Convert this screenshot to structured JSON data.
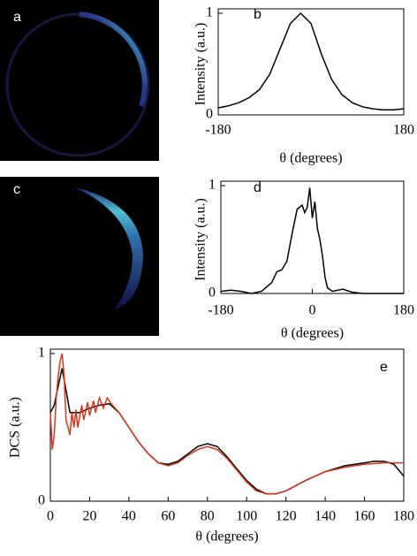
{
  "chart_data": [
    {
      "type": "image",
      "label": "a"
    },
    {
      "type": "line",
      "label": "b",
      "x_label": "θ (degrees)",
      "y_label": "Intensity (a.u.)",
      "xlim": [
        -180,
        180
      ],
      "xticks": [
        -180,
        180
      ],
      "ylim": [
        0,
        1
      ],
      "yticks": [
        0,
        1
      ],
      "series": [
        {
          "color": "#000000",
          "x": [
            -180,
            -160,
            -140,
            -120,
            -100,
            -80,
            -60,
            -40,
            -20,
            0,
            20,
            40,
            60,
            80,
            100,
            120,
            140,
            160,
            180
          ],
          "values": [
            0.07,
            0.09,
            0.12,
            0.17,
            0.25,
            0.4,
            0.65,
            0.9,
            1.0,
            0.9,
            0.6,
            0.35,
            0.2,
            0.12,
            0.08,
            0.06,
            0.05,
            0.05,
            0.06
          ]
        }
      ]
    },
    {
      "type": "image",
      "label": "c"
    },
    {
      "type": "line",
      "label": "d",
      "x_label": "θ (degrees)",
      "y_label": "Intensity (a.u.)",
      "xlim": [
        -180,
        180
      ],
      "xticks": [
        -180,
        0,
        180
      ],
      "ylim": [
        0,
        1
      ],
      "yticks": [
        0,
        1
      ],
      "series": [
        {
          "color": "#000000",
          "x": [
            -180,
            -160,
            -140,
            -120,
            -100,
            -80,
            -70,
            -60,
            -50,
            -40,
            -30,
            -20,
            -15,
            -10,
            -5,
            0,
            5,
            10,
            15,
            20,
            25,
            30,
            40,
            60,
            80,
            100,
            140,
            180
          ],
          "values": [
            0.02,
            0.03,
            0.02,
            0.0,
            0.02,
            0.1,
            0.2,
            0.22,
            0.3,
            0.55,
            0.78,
            0.82,
            0.75,
            0.8,
            0.98,
            0.7,
            0.85,
            0.6,
            0.5,
            0.35,
            0.15,
            0.05,
            0.02,
            0.04,
            0.01,
            0.0,
            0.0,
            0.0
          ]
        }
      ]
    },
    {
      "type": "line",
      "label": "e",
      "x_label": "θ (degrees)",
      "y_label": "DCS (a.u.)",
      "xlim": [
        0,
        180
      ],
      "xticks": [
        0,
        20,
        40,
        60,
        80,
        100,
        120,
        140,
        160,
        180
      ],
      "ylim": [
        0,
        1
      ],
      "yticks": [
        0,
        1
      ],
      "series": [
        {
          "color": "#000000",
          "x": [
            0,
            2,
            4,
            6,
            8,
            10,
            15,
            20,
            25,
            30,
            35,
            40,
            45,
            50,
            55,
            60,
            65,
            70,
            75,
            80,
            85,
            90,
            95,
            100,
            105,
            110,
            115,
            120,
            130,
            140,
            150,
            160,
            165,
            170,
            175,
            180
          ],
          "values": [
            0.6,
            0.65,
            0.78,
            0.9,
            0.75,
            0.6,
            0.6,
            0.63,
            0.65,
            0.66,
            0.6,
            0.5,
            0.4,
            0.32,
            0.26,
            0.25,
            0.27,
            0.32,
            0.37,
            0.39,
            0.37,
            0.3,
            0.22,
            0.14,
            0.08,
            0.05,
            0.05,
            0.07,
            0.14,
            0.2,
            0.24,
            0.26,
            0.27,
            0.27,
            0.25,
            0.17
          ]
        },
        {
          "color": "#d9341c",
          "x": [
            0,
            1,
            2,
            3,
            4,
            5,
            6,
            7,
            8,
            10,
            11,
            12,
            13,
            14,
            16,
            17,
            19,
            20,
            22,
            23,
            25,
            27,
            29,
            31,
            35,
            40,
            45,
            50,
            55,
            60,
            65,
            70,
            75,
            80,
            85,
            90,
            95,
            100,
            105,
            110,
            115,
            120,
            130,
            140,
            150,
            160,
            170,
            180
          ],
          "values": [
            0.6,
            0.35,
            0.45,
            0.7,
            0.85,
            0.95,
            1.0,
            0.85,
            0.55,
            0.45,
            0.6,
            0.5,
            0.62,
            0.5,
            0.65,
            0.55,
            0.67,
            0.58,
            0.68,
            0.6,
            0.7,
            0.63,
            0.7,
            0.66,
            0.6,
            0.5,
            0.4,
            0.32,
            0.26,
            0.24,
            0.26,
            0.31,
            0.35,
            0.37,
            0.35,
            0.29,
            0.21,
            0.13,
            0.07,
            0.05,
            0.05,
            0.07,
            0.14,
            0.2,
            0.23,
            0.25,
            0.26,
            0.26
          ]
        }
      ]
    }
  ]
}
